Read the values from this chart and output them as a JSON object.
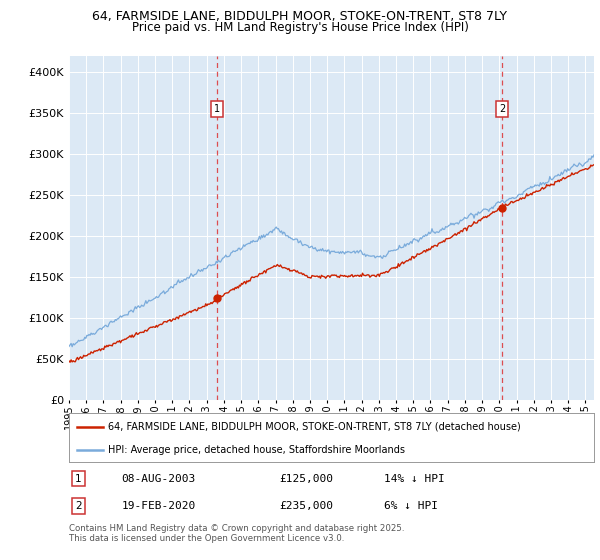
{
  "title1": "64, FARMSIDE LANE, BIDDULPH MOOR, STOKE-ON-TRENT, ST8 7LY",
  "title2": "Price paid vs. HM Land Registry's House Price Index (HPI)",
  "bg_color": "#dce9f5",
  "red_color": "#cc2200",
  "blue_color": "#7aabdb",
  "dashed_color": "#dd3333",
  "ylim_min": 0,
  "ylim_max": 420000,
  "yticks": [
    0,
    50000,
    100000,
    150000,
    200000,
    250000,
    300000,
    350000,
    400000
  ],
  "ytick_labels": [
    "£0",
    "£50K",
    "£100K",
    "£150K",
    "£200K",
    "£250K",
    "£300K",
    "£350K",
    "£400K"
  ],
  "marker1_date": 2003.6,
  "marker1_value": 125000,
  "marker1_label": "1",
  "marker2_date": 2020.15,
  "marker2_value": 235000,
  "marker2_label": "2",
  "legend_line1": "64, FARMSIDE LANE, BIDDULPH MOOR, STOKE-ON-TRENT, ST8 7LY (detached house)",
  "legend_line2": "HPI: Average price, detached house, Staffordshire Moorlands",
  "footnote": "Contains HM Land Registry data © Crown copyright and database right 2025.\nThis data is licensed under the Open Government Licence v3.0.",
  "xmin": 1995.0,
  "xmax": 2025.5,
  "xtick_years": [
    1995,
    1996,
    1997,
    1998,
    1999,
    2000,
    2001,
    2002,
    2003,
    2004,
    2005,
    2006,
    2007,
    2008,
    2009,
    2010,
    2011,
    2012,
    2013,
    2014,
    2015,
    2016,
    2017,
    2018,
    2019,
    2020,
    2021,
    2022,
    2023,
    2024,
    2025
  ]
}
